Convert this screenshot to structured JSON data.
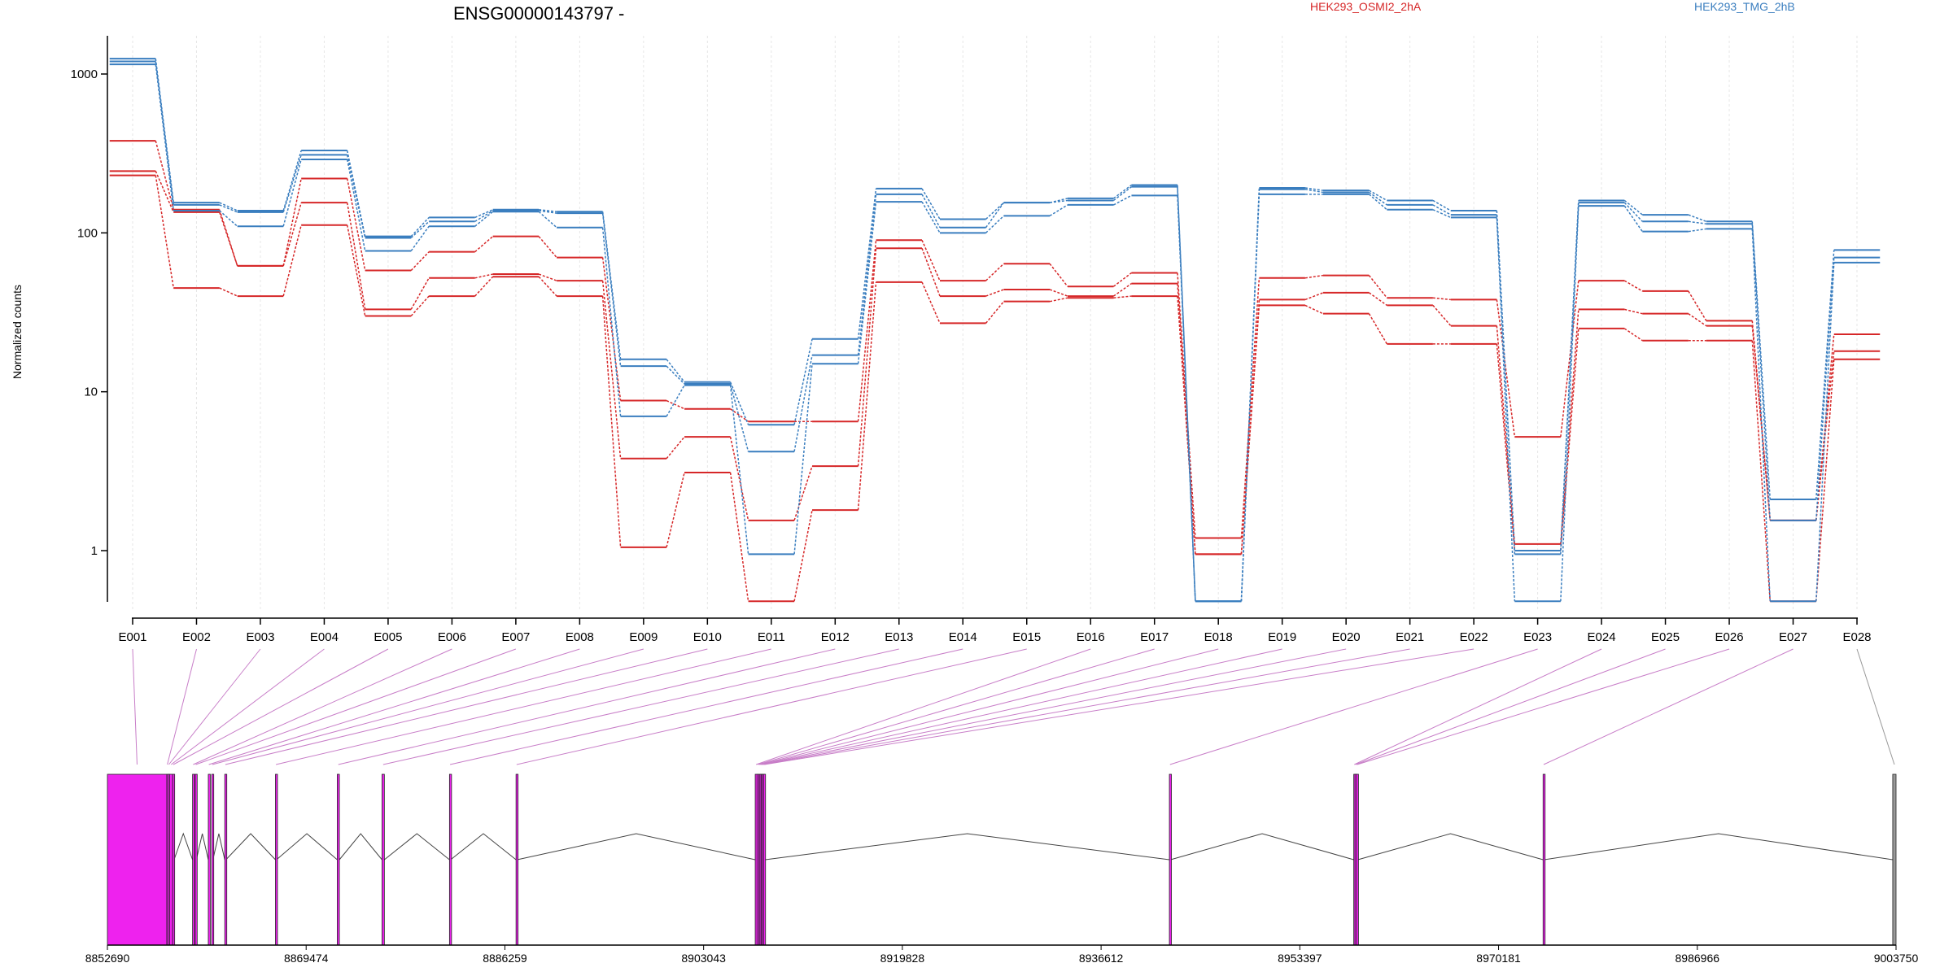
{
  "chart_data": {
    "type": "line",
    "title": "ENSG00000143797 -",
    "xlabel": "",
    "ylabel": "Normalized counts",
    "yscale": "log",
    "ylim": [
      0.48,
      1600
    ],
    "yticks": [
      1,
      10,
      100,
      1000
    ],
    "ytick_labels": [
      "1",
      "10",
      "100",
      "1000"
    ],
    "grid": "vertical",
    "categories": [
      "E001",
      "E002",
      "E003",
      "E004",
      "E005",
      "E006",
      "E007",
      "E008",
      "E009",
      "E010",
      "E011",
      "E012",
      "E013",
      "E014",
      "E015",
      "E016",
      "E017",
      "E018",
      "E019",
      "E020",
      "E021",
      "E022",
      "E023",
      "E024",
      "E025",
      "E026",
      "E027",
      "E028"
    ],
    "legend": [
      {
        "label": "HEK293_OSMI2_2hA",
        "color": "#d62728",
        "placement": "top-center"
      },
      {
        "label": "HEK293_TMG_2hB",
        "color": "#3a7ebf",
        "placement": "top-right"
      }
    ],
    "series": [
      {
        "group": "HEK293_OSMI2_2hA",
        "color": "#d62728",
        "values": [
          380,
          140,
          62,
          220,
          58,
          76,
          95,
          70,
          8.8,
          7.8,
          6.5,
          6.5,
          90,
          50,
          64,
          46,
          56,
          1.2,
          52,
          54,
          39,
          38,
          5.2,
          50,
          43,
          28,
          1.55,
          23
        ]
      },
      {
        "group": "HEK293_OSMI2_2hA",
        "color": "#d62728",
        "values": [
          245,
          135,
          62,
          155,
          33,
          52,
          55,
          50,
          3.8,
          5.2,
          1.55,
          3.4,
          80,
          40,
          44,
          40,
          48,
          0.95,
          38,
          42,
          35,
          26,
          1.1,
          33,
          31,
          26,
          1.55,
          18
        ]
      },
      {
        "group": "HEK293_OSMI2_2hA",
        "color": "#d62728",
        "values": [
          230,
          45,
          40,
          112,
          30,
          40,
          53,
          40,
          1.05,
          3.1,
          0.48,
          1.8,
          49,
          27,
          37,
          39,
          40,
          0.95,
          35,
          31,
          20,
          20,
          1.0,
          25,
          21,
          21,
          0.48,
          16
        ]
      },
      {
        "group": "HEK293_TMG_2hB",
        "color": "#3a7ebf",
        "values": [
          1250,
          155,
          138,
          330,
          95,
          125,
          140,
          136,
          16,
          11.5,
          6.2,
          21.5,
          190,
          122,
          155,
          165,
          200,
          0.48,
          192,
          185,
          160,
          138,
          1.0,
          160,
          130,
          118,
          2.1,
          78
        ]
      },
      {
        "group": "HEK293_TMG_2hB",
        "color": "#3a7ebf",
        "values": [
          1200,
          150,
          135,
          310,
          93,
          118,
          138,
          133,
          14.5,
          11.2,
          4.2,
          17,
          175,
          108,
          155,
          160,
          195,
          0.48,
          188,
          180,
          150,
          130,
          0.95,
          155,
          118,
          114,
          1.55,
          70
        ]
      },
      {
        "group": "HEK293_TMG_2hB",
        "color": "#3a7ebf",
        "values": [
          1150,
          138,
          110,
          290,
          77,
          110,
          136,
          108,
          7,
          11,
          0.95,
          15,
          157,
          100,
          128,
          150,
          172,
          0.48,
          175,
          175,
          140,
          125,
          0.48,
          148,
          102,
          106,
          0.48,
          65
        ]
      }
    ],
    "gene_model": {
      "coord_ticks": [
        "8852690",
        "8869474",
        "8886259",
        "8903043",
        "8919828",
        "8936612",
        "8953397",
        "8970181",
        "8986966",
        "9003750"
      ],
      "exons": [
        {
          "id": "E001",
          "start": 8852690,
          "end": 8857700,
          "color": "#ee22ee"
        },
        {
          "id": "E002",
          "start": 8857700,
          "end": 8857800,
          "color": "#ee22ee"
        },
        {
          "id": "E003",
          "start": 8857800,
          "end": 8857950,
          "color": "#ee22ee"
        },
        {
          "id": "E004",
          "start": 8857950,
          "end": 8858200,
          "color": "#ee22ee"
        },
        {
          "id": "E005",
          "start": 8858200,
          "end": 8858320,
          "color": "#ee22ee"
        },
        {
          "id": "E006",
          "start": 8859880,
          "end": 8859990,
          "color": "#ee22ee"
        },
        {
          "id": "E007",
          "start": 8860100,
          "end": 8860200,
          "color": "#ee22ee"
        },
        {
          "id": "E008",
          "start": 8861210,
          "end": 8861300,
          "color": "#ee22ee"
        },
        {
          "id": "E009",
          "start": 8861500,
          "end": 8861600,
          "color": "#ee22ee"
        },
        {
          "id": "E010",
          "start": 8862600,
          "end": 8862700,
          "color": "#ee22ee"
        },
        {
          "id": "E011",
          "start": 8866880,
          "end": 8866970,
          "color": "#ee22ee"
        },
        {
          "id": "E012",
          "start": 8872100,
          "end": 8872280,
          "color": "#ee22ee"
        },
        {
          "id": "E013",
          "start": 8875880,
          "end": 8876080,
          "color": "#ee22ee"
        },
        {
          "id": "E014",
          "start": 8881580,
          "end": 8881680,
          "color": "#ee22ee"
        },
        {
          "id": "E015",
          "start": 8887200,
          "end": 8887300,
          "color": "#ee22ee"
        },
        {
          "id": "E016",
          "start": 8907400,
          "end": 8907550,
          "color": "#ee22ee"
        },
        {
          "id": "E017",
          "start": 8907550,
          "end": 8907700,
          "color": "#ee22ee"
        },
        {
          "id": "E018",
          "start": 8907700,
          "end": 8907800,
          "color": "#ee22ee"
        },
        {
          "id": "E019",
          "start": 8907800,
          "end": 8907900,
          "color": "#ee22ee"
        },
        {
          "id": "E020",
          "start": 8907900,
          "end": 8908000,
          "color": "#ee22ee"
        },
        {
          "id": "E021",
          "start": 8908000,
          "end": 8908100,
          "color": "#ee22ee"
        },
        {
          "id": "E022",
          "start": 8908100,
          "end": 8908250,
          "color": "#ee22ee"
        },
        {
          "id": "E023",
          "start": 8942380,
          "end": 8942480,
          "color": "#ee22ee"
        },
        {
          "id": "E024",
          "start": 8957950,
          "end": 8958050,
          "color": "#ee22ee"
        },
        {
          "id": "E025",
          "start": 8958050,
          "end": 8958180,
          "color": "#ee22ee"
        },
        {
          "id": "E026",
          "start": 8958180,
          "end": 8958300,
          "color": "#ee22ee"
        },
        {
          "id": "E027",
          "start": 8973940,
          "end": 8974040,
          "color": "#ee22ee"
        },
        {
          "id": "E028",
          "start": 9003470,
          "end": 9003750,
          "color": "#999999"
        }
      ]
    }
  }
}
